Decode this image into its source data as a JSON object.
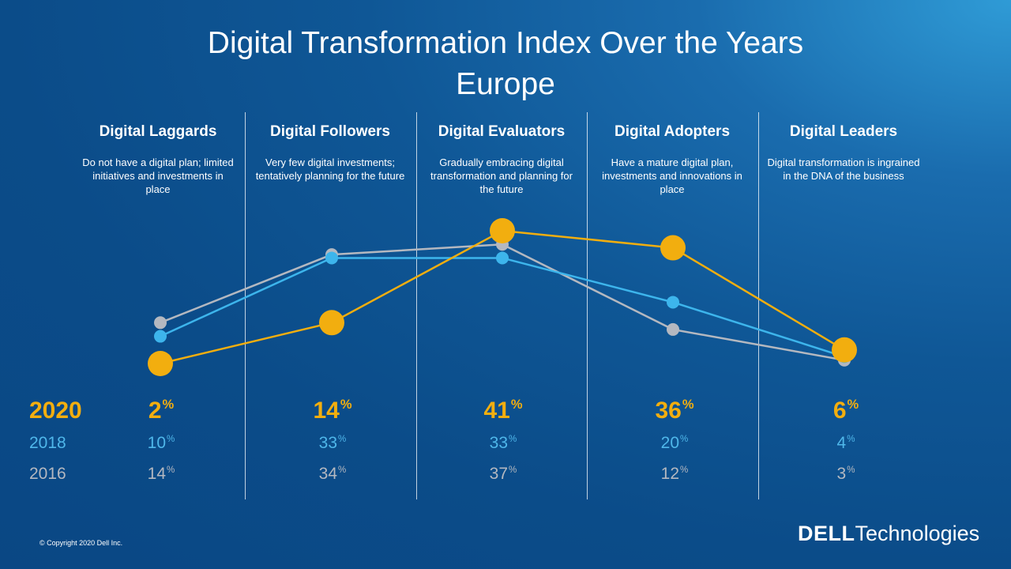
{
  "title_line1": "Digital Transformation Index Over the Years",
  "title_line2": "Europe",
  "columns": [
    {
      "name": "Digital Laggards",
      "description": "Do not have a digital plan; limited initiatives and investments in place"
    },
    {
      "name": "Digital Followers",
      "description": "Very few digital investments; tentatively planning for the future"
    },
    {
      "name": "Digital Evaluators",
      "description": "Gradually embracing digital transformation and planning for the future"
    },
    {
      "name": "Digital Adopters",
      "description": "Have a mature digital plan, investments and innovations in place"
    },
    {
      "name": "Digital Leaders",
      "description": "Digital transformation is ingrained in the DNA of the business"
    }
  ],
  "rows": [
    {
      "year": "2020",
      "values": [
        "2",
        "14",
        "41",
        "36",
        "6"
      ]
    },
    {
      "year": "2018",
      "values": [
        "10",
        "33",
        "33",
        "20",
        "4"
      ]
    },
    {
      "year": "2016",
      "values": [
        "14",
        "34",
        "37",
        "12",
        "3"
      ]
    }
  ],
  "percent_symbol": "%",
  "chart_data": {
    "type": "line",
    "categories": [
      "Digital Laggards",
      "Digital Followers",
      "Digital Evaluators",
      "Digital Adopters",
      "Digital Leaders"
    ],
    "series": [
      {
        "name": "2020",
        "values": [
          2,
          14,
          41,
          36,
          6
        ],
        "color": "#f2ae0f"
      },
      {
        "name": "2018",
        "values": [
          10,
          33,
          33,
          20,
          4
        ],
        "color": "#3db5ec"
      },
      {
        "name": "2016",
        "values": [
          14,
          34,
          37,
          12,
          3
        ],
        "color": "#b4b8c0"
      }
    ],
    "title": "Digital Transformation Index Over the Years",
    "subtitle": "Europe",
    "xlabel": "",
    "ylabel": "",
    "grid": false
  },
  "footer": {
    "copyright": "© Copyright 2020 Dell Inc.",
    "logo_brand": "DELL",
    "logo_suffix": "Technologies"
  },
  "colors": {
    "y2020": "#f2ae0f",
    "y2018": "#3db5ec",
    "y2016": "#b4b8c0"
  }
}
